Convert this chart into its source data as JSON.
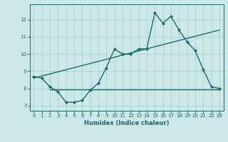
{
  "xlabel": "Humidex (Indice chaleur)",
  "ylabel": "",
  "bg_color": "#cce8e8",
  "grid_color": "#aacfcf",
  "line_color": "#1a6b6b",
  "xlim": [
    -0.5,
    23.5
  ],
  "ylim": [
    6.7,
    12.9
  ],
  "xticks": [
    0,
    1,
    2,
    3,
    4,
    5,
    6,
    7,
    8,
    9,
    10,
    11,
    12,
    13,
    14,
    15,
    16,
    17,
    18,
    19,
    20,
    21,
    22,
    23
  ],
  "yticks": [
    7,
    8,
    9,
    10,
    11,
    12
  ],
  "series1_x": [
    0,
    1,
    2,
    3,
    4,
    5,
    6,
    7,
    8,
    9,
    10,
    11,
    12,
    13,
    14,
    15,
    16,
    17,
    18,
    19,
    20,
    21,
    22,
    23
  ],
  "series1_y": [
    8.7,
    8.6,
    8.1,
    7.8,
    7.2,
    7.2,
    7.3,
    7.9,
    8.3,
    9.2,
    10.3,
    10.0,
    10.0,
    10.3,
    10.3,
    12.4,
    11.8,
    12.2,
    11.4,
    10.7,
    10.2,
    9.1,
    8.1,
    8.0
  ],
  "series2_x": [
    0,
    23
  ],
  "series2_y": [
    8.6,
    11.4
  ],
  "series3_x": [
    2,
    23
  ],
  "series3_y": [
    7.95,
    7.95
  ],
  "marker_size": 2.5,
  "line_width": 1.0
}
